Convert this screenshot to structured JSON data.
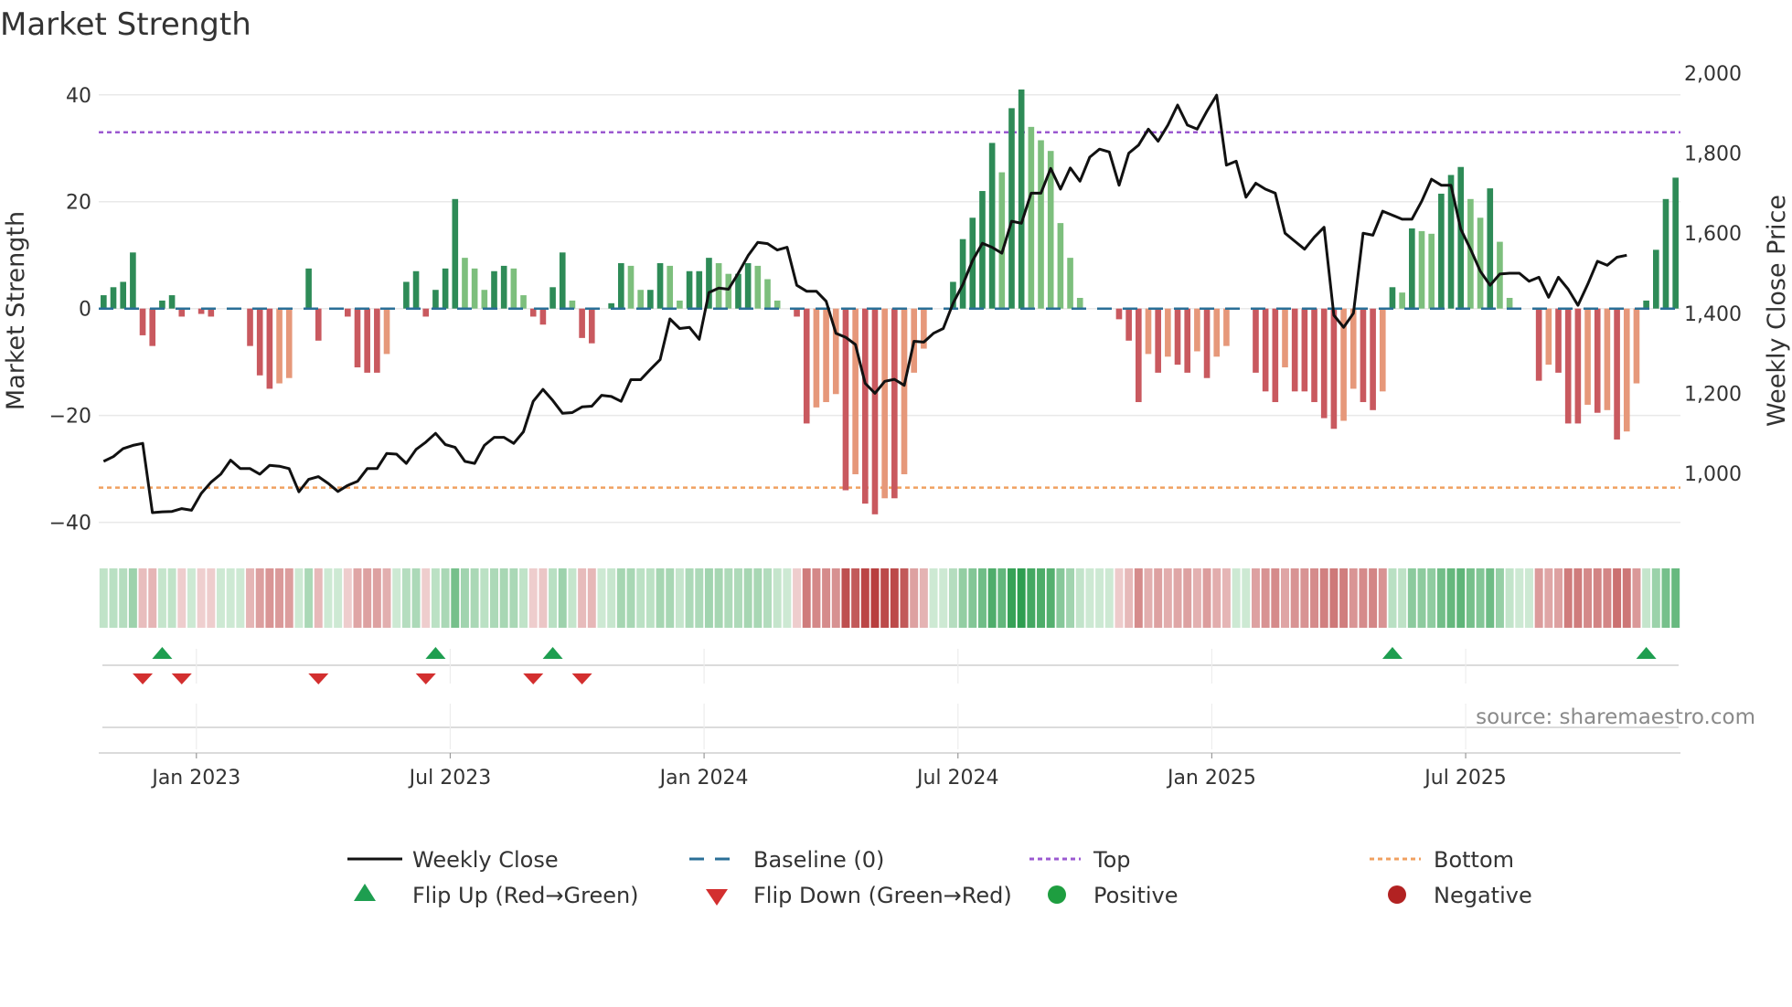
{
  "chart_data": {
    "type": "bar",
    "title": "Market Strength",
    "source": "source: sharemaestro.com",
    "left_axis": {
      "label": "Market Strength",
      "ticks": [
        40,
        20,
        0,
        -20,
        -40
      ],
      "tick_labels": [
        "40",
        "20",
        "0",
        "−20",
        "−40"
      ],
      "range": [
        -44,
        41.5
      ]
    },
    "right_axis": {
      "label": "Weekly Close Price",
      "ticks": [
        2000,
        1800,
        1600,
        1400,
        1200,
        1000
      ],
      "tick_labels": [
        "2,000",
        "1,800",
        "1,600",
        "1,400",
        "1,200",
        "1,000"
      ],
      "range": [
        870,
        2000
      ]
    },
    "x_axis": {
      "ticks": [
        {
          "label": "Jan 2023",
          "week": 10
        },
        {
          "label": "Jul 2023",
          "week": 36
        },
        {
          "label": "Jan 2024",
          "week": 62
        },
        {
          "label": "Jul 2024",
          "week": 88
        },
        {
          "label": "Jan 2025",
          "week": 114
        },
        {
          "label": "Jul 2025",
          "week": 140
        }
      ]
    },
    "top_level": 33,
    "bottom_level": -33.5,
    "strength": [
      2.5,
      4,
      5,
      10.5,
      -5,
      -7,
      1.5,
      2.5,
      -1.5,
      0,
      -1,
      -1.5,
      0,
      0,
      0,
      -7,
      -12.5,
      -15,
      -14,
      -13,
      0,
      7.5,
      -6,
      0,
      0,
      -1.5,
      -11,
      -12,
      -12,
      -8.5,
      0,
      5,
      7,
      -1.5,
      3.5,
      7.5,
      20.5,
      9.5,
      7.5,
      3.5,
      7,
      8,
      7.5,
      2.5,
      -1.5,
      -3,
      4,
      10.5,
      1.5,
      -5.5,
      -6.5,
      0,
      1,
      8.5,
      8,
      3.5,
      3.5,
      8.5,
      8,
      1.5,
      7,
      7,
      9.5,
      8.5,
      6.5,
      6.5,
      8.5,
      8,
      5.5,
      1.5,
      0,
      -1.5,
      -21.5,
      -18.5,
      -17.5,
      -16,
      -34,
      -31,
      -36.5,
      -38.5,
      -35.5,
      -35.5,
      -31,
      -12,
      -7.5,
      0,
      0,
      5,
      13,
      17,
      22,
      31,
      25.5,
      37.5,
      41,
      34,
      31.5,
      29.5,
      16,
      9.5,
      2,
      0,
      0,
      0,
      -2,
      -6,
      -17.5,
      -8.5,
      -12,
      -9,
      -10.5,
      -12,
      -8,
      -13,
      -9,
      -7,
      0,
      0,
      -12,
      -15.5,
      -17.5,
      -11,
      -15.5,
      -15.5,
      -17.5,
      -20.5,
      -22.5,
      -21,
      -15,
      -17.5,
      -19,
      -15.5,
      4,
      3,
      15,
      14.5,
      14,
      21.5,
      25,
      26.5,
      20.5,
      17,
      22.5,
      12.5,
      2,
      0,
      0,
      -13.5,
      -10.5,
      -12,
      -21.5,
      -21.5,
      -18,
      -19.5,
      -19,
      -24.5,
      -23,
      -14,
      1.5,
      11,
      20.5,
      24.5
    ],
    "weekly_close": [
      1030,
      1042,
      1062,
      1070,
      1075,
      902,
      904,
      905,
      912,
      908,
      950,
      978,
      998,
      1033,
      1012,
      1012,
      998,
      1020,
      1018,
      1012,
      954,
      985,
      992,
      975,
      955,
      970,
      980,
      1012,
      1012,
      1050,
      1048,
      1025,
      1060,
      1078,
      1100,
      1072,
      1065,
      1030,
      1025,
      1070,
      1090,
      1090,
      1075,
      1104,
      1180,
      1210,
      1182,
      1150,
      1152,
      1166,
      1168,
      1195,
      1192,
      1180,
      1234,
      1234,
      1260,
      1284,
      1386,
      1362,
      1365,
      1335,
      1452,
      1463,
      1460,
      1500,
      1544,
      1577,
      1574,
      1558,
      1565,
      1470,
      1455,
      1455,
      1430,
      1350,
      1340,
      1322,
      1225,
      1200,
      1230,
      1235,
      1220,
      1330,
      1328,
      1350,
      1362,
      1425,
      1472,
      1532,
      1575,
      1565,
      1550,
      1630,
      1625,
      1700,
      1700,
      1762,
      1710,
      1763,
      1730,
      1790,
      1810,
      1803,
      1720,
      1800,
      1820,
      1860,
      1830,
      1870,
      1920,
      1870,
      1860,
      1905,
      1945,
      1770,
      1780,
      1690,
      1725,
      1710,
      1700,
      1600,
      1580,
      1560,
      1590,
      1615,
      1395,
      1365,
      1400,
      1600,
      1595,
      1655,
      1645,
      1635,
      1635,
      1680,
      1735,
      1720,
      1720,
      1610,
      1560,
      1505,
      1470,
      1498,
      1500,
      1500,
      1480,
      1490,
      1440,
      1490,
      1460,
      1420,
      1472,
      1530,
      1520,
      1540,
      1545
    ]
  },
  "legend": {
    "weekly_close": "Weekly Close",
    "baseline": "Baseline (0)",
    "top": "Top",
    "bottom": "Bottom",
    "flip_up": "Flip Up (Red→Green)",
    "flip_down": "Flip Down (Green→Red)",
    "positive": "Positive",
    "negative": "Negative"
  },
  "colors": {
    "pos_strong": "#2e8b57",
    "pos_light": "#7dbf7d",
    "neg_strong": "#c9595f",
    "neg_light": "#e6987a",
    "price_line": "#111111",
    "baseline": "#2a6f97",
    "top_line": "#9b59d0",
    "bottom_line": "#f0a060",
    "flip_up": "#1e9e50",
    "flip_down": "#d32f2f",
    "positive_dot": "#1e9e40",
    "negative_dot": "#b22222"
  }
}
